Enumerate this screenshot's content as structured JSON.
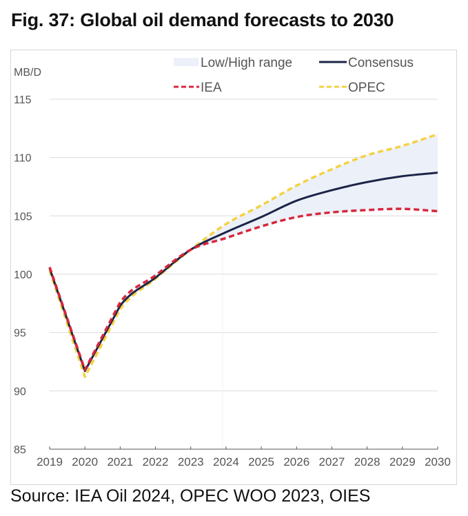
{
  "figure": {
    "title": "Fig. 37: Global oil demand forecasts to 2030",
    "source": "Source: IEA Oil 2024, OPEC WOO 2023, OIES"
  },
  "colors": {
    "consensus": "#1b2447",
    "iea": "#d7263d",
    "opec": "#f5d142",
    "range_fill": "#ecf0f8",
    "grid": "#dcdcdc",
    "axis": "#555555"
  },
  "chart_data": {
    "type": "line",
    "title": "Fig. 37: Global oil demand forecasts to 2030",
    "xlabel": "",
    "ylabel": "MB/D",
    "x": [
      "2019",
      "2020",
      "2021",
      "2022",
      "2023",
      "2024",
      "2025",
      "2026",
      "2027",
      "2028",
      "2029",
      "2030"
    ],
    "ylim": [
      85,
      115
    ],
    "yticks": [
      85,
      90,
      95,
      100,
      105,
      110,
      115
    ],
    "grid": true,
    "legend_position": "top",
    "legend": [
      "Low/High range",
      "Consensus",
      "IEA",
      "OPEC"
    ],
    "series": [
      {
        "name": "Consensus",
        "style": "solid",
        "values": [
          100.5,
          91.7,
          97.3,
          99.7,
          102.1,
          103.6,
          104.9,
          106.3,
          107.2,
          107.9,
          108.4,
          108.7
        ]
      },
      {
        "name": "IEA",
        "style": "dashed",
        "values": [
          100.6,
          91.8,
          97.6,
          99.9,
          102.1,
          103.1,
          104.1,
          104.9,
          105.3,
          105.5,
          105.6,
          105.4
        ]
      },
      {
        "name": "OPEC",
        "style": "dashed",
        "values": [
          100.3,
          91.2,
          97.0,
          99.6,
          102.1,
          104.3,
          105.9,
          107.6,
          109.0,
          110.2,
          111.0,
          112.0
        ]
      }
    ],
    "range": {
      "name": "Low/High range",
      "x_start": "2023",
      "low": [
        102.1,
        103.1,
        104.1,
        104.9,
        105.3,
        105.5,
        105.6,
        105.4
      ],
      "high": [
        102.1,
        104.3,
        105.9,
        107.6,
        109.0,
        110.2,
        111.0,
        112.0
      ]
    }
  }
}
